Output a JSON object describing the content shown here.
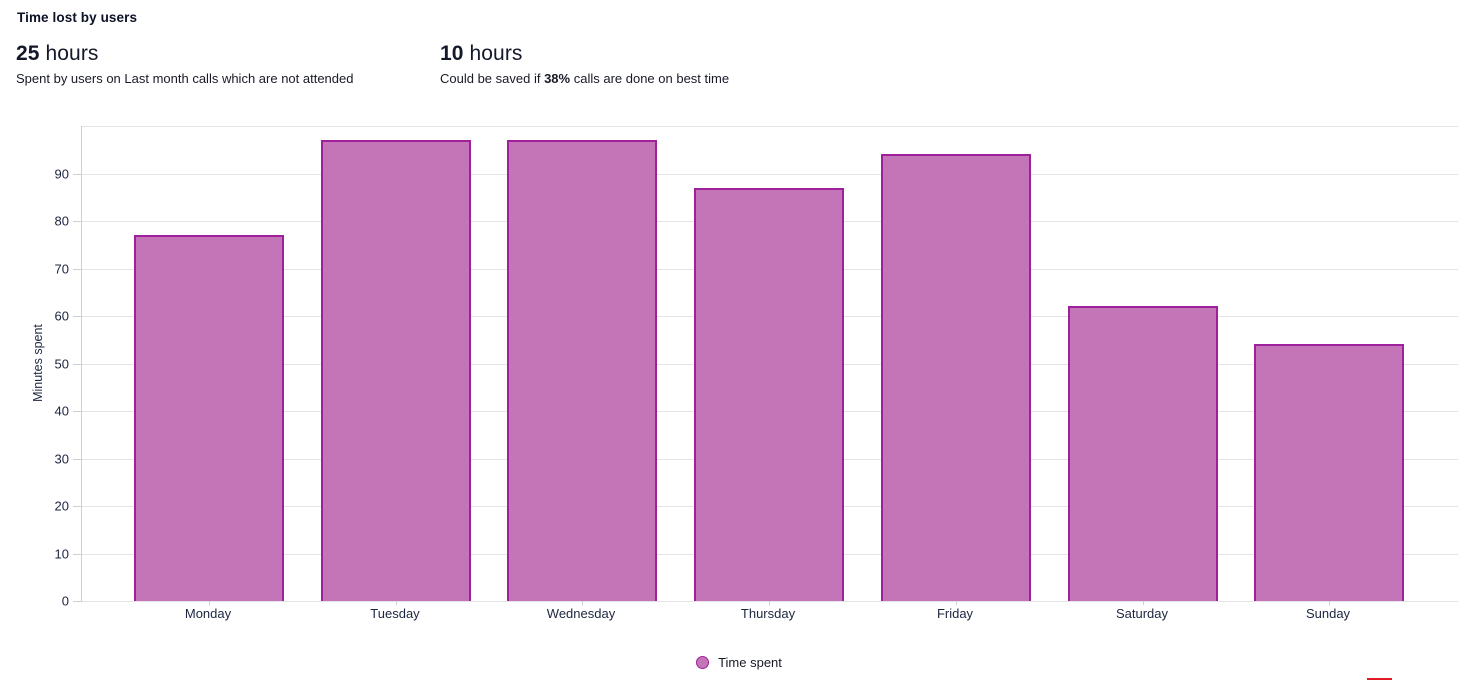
{
  "header": {
    "title": "Time lost by users",
    "stats": [
      {
        "value": "25",
        "unit": "hours",
        "desc_prefix": "Spent by users on Last month calls which are not attended",
        "desc_bold": "",
        "desc_suffix": ""
      },
      {
        "value": "10",
        "unit": "hours",
        "desc_prefix": "Could be saved if ",
        "desc_bold": "38%",
        "desc_suffix": " calls are done on best time"
      }
    ]
  },
  "chart_data": {
    "type": "bar",
    "title": "Time lost by users",
    "categories": [
      "Monday",
      "Tuesday",
      "Wednesday",
      "Thursday",
      "Friday",
      "Saturday",
      "Sunday"
    ],
    "series": [
      {
        "name": "Time spent",
        "values": [
          77,
          97,
          97,
          87,
          94,
          62,
          54
        ]
      }
    ],
    "xlabel": "",
    "ylabel": "Minutes spent",
    "ylim": [
      0,
      100
    ],
    "ytick_step": 10,
    "ytick_labels": [
      "0",
      "10",
      "20",
      "30",
      "40",
      "50",
      "60",
      "70",
      "80",
      "90"
    ],
    "grid": true,
    "legend_position": "bottom-center",
    "colors": {
      "bar_fill": "#c475b8",
      "bar_border": "#9e219b",
      "grid_line": "#e4e4e4",
      "axis_line": "#cfcfcf",
      "red_accent": "#e01b24"
    }
  }
}
